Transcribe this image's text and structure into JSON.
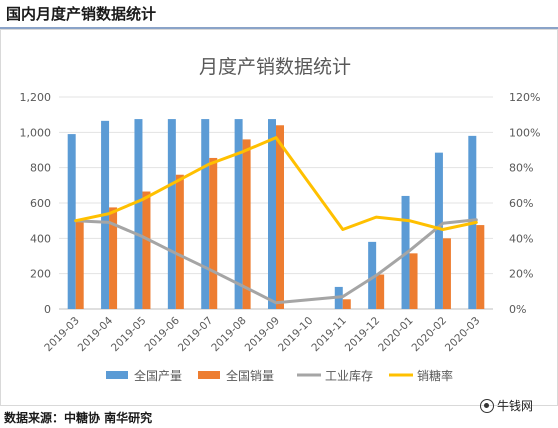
{
  "header": {
    "title": "国内月度产销数据统计"
  },
  "footer": {
    "source": "数据来源：中糖协 南华研究"
  },
  "watermark": {
    "text": "牛钱网",
    "icon": "wechat-bubble-icon"
  },
  "chart_data": {
    "type": "bar",
    "title": "月度产销数据统计",
    "categories": [
      "2019-03",
      "2019-04",
      "2019-05",
      "2019-06",
      "2019-07",
      "2019-08",
      "2019-09",
      "2019-10",
      "2019-11",
      "2019-12",
      "2020-01",
      "2020-02",
      "2020-03"
    ],
    "y_ticks": [
      "0",
      "200",
      "400",
      "600",
      "800",
      "1,000",
      "1,200"
    ],
    "y2_ticks": [
      "0%",
      "20%",
      "40%",
      "60%",
      "80%",
      "100%",
      "120%"
    ],
    "ylim": [
      0,
      1200
    ],
    "y2lim": [
      0,
      120
    ],
    "grid": true,
    "legend_position": "bottom",
    "series": [
      {
        "name": "全国产量",
        "type": "bar",
        "axis": "left",
        "color": "#5b9bd5",
        "values": [
          990,
          1065,
          1075,
          1075,
          1075,
          1075,
          1075,
          null,
          125,
          380,
          640,
          885,
          980
        ]
      },
      {
        "name": "全国销量",
        "type": "bar",
        "axis": "left",
        "color": "#ed7d31",
        "values": [
          500,
          575,
          665,
          760,
          855,
          960,
          1040,
          null,
          55,
          195,
          315,
          400,
          475
        ]
      },
      {
        "name": "工业库存",
        "type": "line",
        "axis": "left",
        "color": "#a5a5a5",
        "values": [
          500,
          490,
          410,
          315,
          225,
          130,
          35,
          null,
          70,
          190,
          330,
          485,
          505
        ]
      },
      {
        "name": "销糖率",
        "type": "line",
        "axis": "right",
        "color": "#ffc000",
        "values": [
          50,
          54,
          62,
          72,
          82,
          89,
          97,
          null,
          45,
          52,
          50,
          45,
          49
        ]
      }
    ]
  }
}
